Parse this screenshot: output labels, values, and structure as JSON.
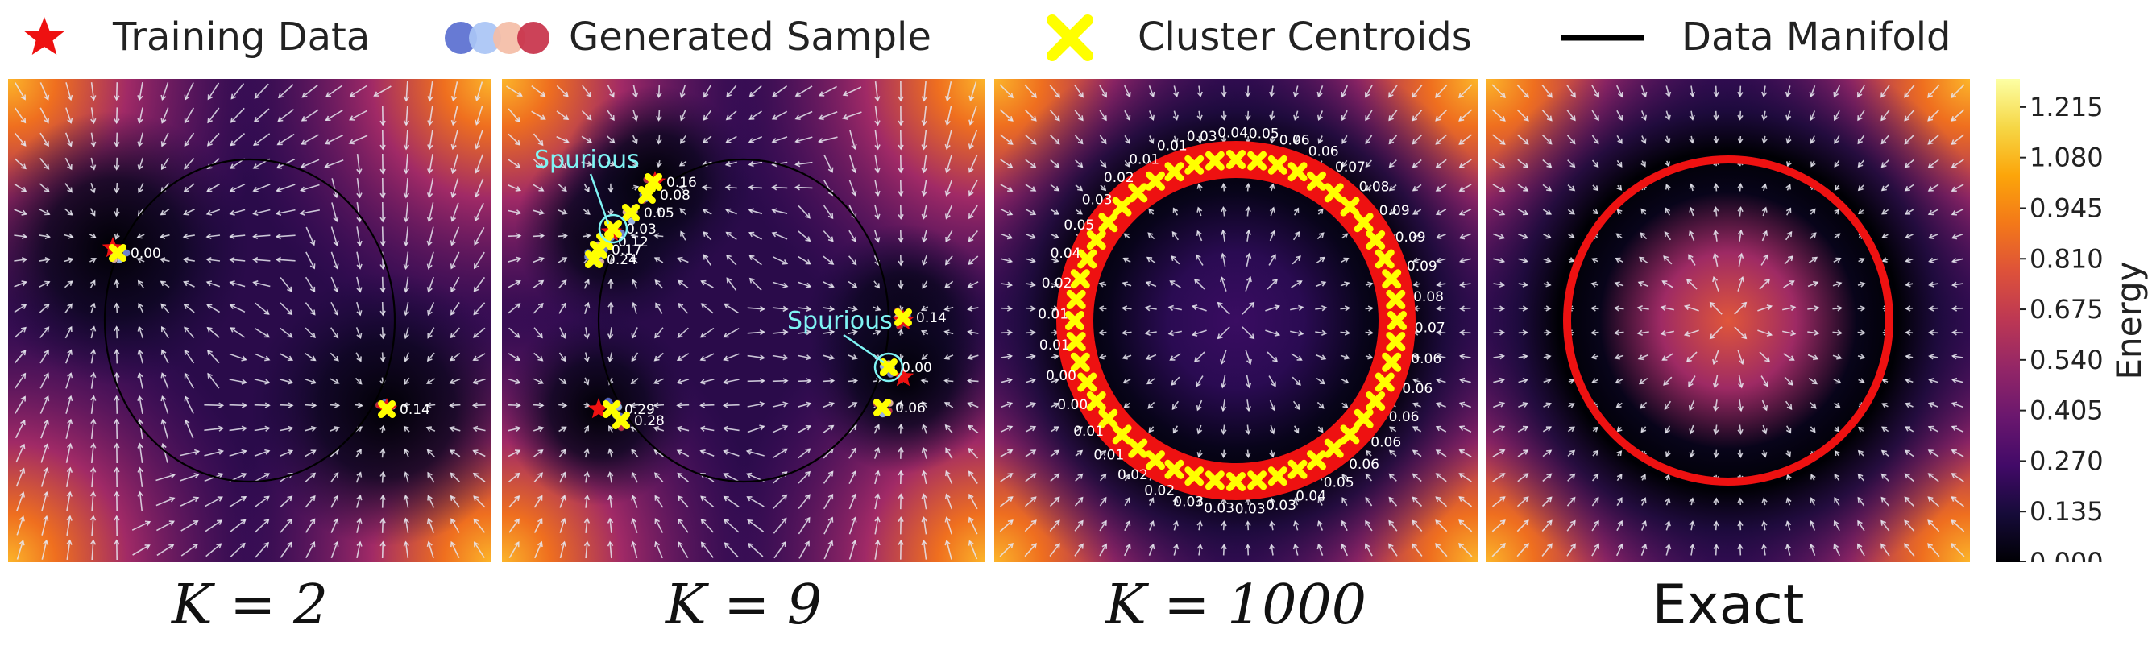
{
  "legend": {
    "training_label": "Training Data",
    "generated_label": "Generated Sample",
    "centroid_label": "Cluster Centroids",
    "manifold_label": "Data Manifold",
    "generated_colors": [
      "#5a6fd0",
      "#a9c4f5",
      "#f4bda6",
      "#c8324a"
    ],
    "training_color": "#ee1111",
    "centroid_color": "#ffff00",
    "icons": [
      "star-icon",
      "dots-icon",
      "x-marker-icon",
      "line-icon"
    ]
  },
  "colorbar": {
    "label": "Energy",
    "ticks": [
      "0.000",
      "0.135",
      "0.270",
      "0.405",
      "0.540",
      "0.675",
      "0.810",
      "0.945",
      "1.080",
      "1.215"
    ],
    "range": [
      0,
      1.29
    ],
    "colormap": "inferno"
  },
  "chart_data": [
    {
      "type": "heatmap",
      "title": "K = 2",
      "xlim": [
        -1.5,
        1.5
      ],
      "ylim": [
        -1.5,
        1.5
      ],
      "manifold_radius": 1.0,
      "training_points": [
        [
          -0.85,
          0.45
        ],
        [
          0.85,
          -0.55
        ]
      ],
      "centroids": [
        {
          "x": -0.82,
          "y": 0.42,
          "label": "0.00"
        },
        {
          "x": 0.85,
          "y": -0.55,
          "label": "0.14"
        }
      ],
      "annotations": []
    },
    {
      "type": "heatmap",
      "title": "K = 9",
      "xlim": [
        -1.5,
        1.5
      ],
      "ylim": [
        -1.5,
        1.5
      ],
      "manifold_radius": 1.0,
      "training_points": [
        [
          -0.82,
          0.55
        ],
        [
          -0.55,
          0.86
        ],
        [
          0.99,
          0.0
        ],
        [
          0.99,
          -0.35
        ],
        [
          -0.9,
          -0.55
        ]
      ],
      "centroids": [
        {
          "x": -0.56,
          "y": 0.86,
          "label": "0.16"
        },
        {
          "x": -0.6,
          "y": 0.78,
          "label": "0.08"
        },
        {
          "x": -0.7,
          "y": 0.67,
          "label": "0.05"
        },
        {
          "x": -0.81,
          "y": 0.57,
          "label": "0.03"
        },
        {
          "x": -0.86,
          "y": 0.49,
          "label": "0.12"
        },
        {
          "x": -0.9,
          "y": 0.44,
          "label": "0.17"
        },
        {
          "x": -0.93,
          "y": 0.38,
          "label": "0.24"
        },
        {
          "x": -0.82,
          "y": -0.55,
          "label": "0.29"
        },
        {
          "x": -0.76,
          "y": -0.62,
          "label": "0.28"
        },
        {
          "x": 0.99,
          "y": 0.02,
          "label": "0.14"
        },
        {
          "x": 0.9,
          "y": -0.29,
          "label": "0.00"
        },
        {
          "x": 0.86,
          "y": -0.54,
          "label": "0.06"
        }
      ],
      "annotations": [
        {
          "text": "Spurious",
          "text_xy": [
            -1.3,
            0.95
          ],
          "target_xy": [
            -0.81,
            0.57
          ]
        },
        {
          "text": "Spurious",
          "text_xy": [
            0.27,
            -0.05
          ],
          "target_xy": [
            0.9,
            -0.29
          ]
        }
      ]
    },
    {
      "type": "heatmap",
      "title": "K = 1000",
      "xlim": [
        -1.5,
        1.5
      ],
      "ylim": [
        -1.5,
        1.5
      ],
      "manifold_radius": 1.0,
      "ring": true,
      "centroid_count_drawn": 48,
      "centroid_labels": [
        "0.01",
        "0.03",
        "0.04",
        "0.05",
        "0.06",
        "0.06",
        "0.07",
        "0.08",
        "0.09",
        "0.09",
        "0.09",
        "0.08",
        "0.07",
        "0.06",
        "0.06",
        "0.06",
        "0.06",
        "0.06",
        "0.05",
        "0.04",
        "0.03",
        "0.03",
        "0.03",
        "0.03",
        "0.02",
        "0.02",
        "0.01",
        "0.01",
        "0.00",
        "0.00",
        "0.01",
        "0.01",
        "0.02",
        "0.04",
        "0.05",
        "0.03",
        "0.02",
        "0.01"
      ],
      "annotations": []
    },
    {
      "type": "heatmap",
      "title": "Exact",
      "xlim": [
        -1.5,
        1.5
      ],
      "ylim": [
        -1.5,
        1.5
      ],
      "manifold_radius": 1.0,
      "ring": true,
      "annotations": []
    }
  ]
}
